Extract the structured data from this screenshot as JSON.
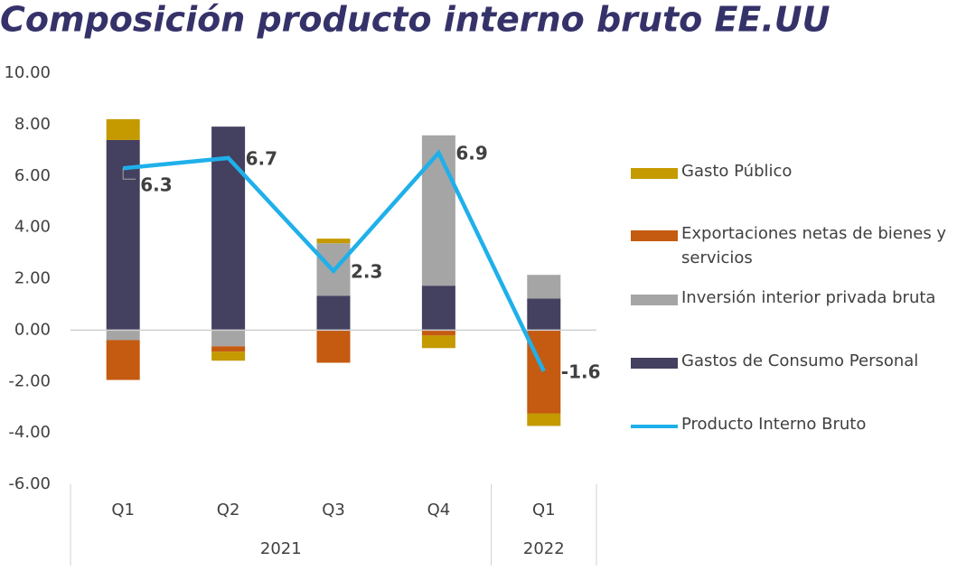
{
  "chart_data": {
    "type": "stacked-bar-line",
    "title": "Composición producto interno bruto EE.UU",
    "categories": [
      "Q1",
      "Q2",
      "Q3",
      "Q4",
      "Q1"
    ],
    "year_groups": [
      {
        "label": "2021",
        "count": 4
      },
      {
        "label": "2022",
        "count": 1
      }
    ],
    "series": [
      {
        "name": "Gastos de Consumo Personal",
        "color": "#44405f",
        "values": [
          7.4,
          7.92,
          1.34,
          1.73,
          1.23
        ]
      },
      {
        "name": "Inversión interior privada bruta",
        "color": "#a5a5a5",
        "values": [
          -0.39,
          -0.63,
          2.04,
          5.85,
          0.92
        ]
      },
      {
        "name": "Exportaciones netas de bienes y servicios",
        "color": "#c55a11",
        "values": [
          -1.55,
          -0.21,
          -1.27,
          -0.21,
          -3.24
        ]
      },
      {
        "name": "Gasto Público",
        "color": "#c49a00",
        "values": [
          0.81,
          -0.35,
          0.18,
          -0.49,
          -0.49
        ]
      }
    ],
    "line": {
      "name": "Producto Interno Bruto",
      "color": "#1fb0ea",
      "values": [
        6.3,
        6.7,
        2.3,
        6.9,
        -1.6
      ]
    },
    "ylim": [
      -6,
      10
    ],
    "yticks": [
      {
        "value": -6,
        "label": "-6.00"
      },
      {
        "value": -4,
        "label": "-4.00"
      },
      {
        "value": -2,
        "label": "-2.00"
      },
      {
        "value": 0,
        "label": "0.00"
      },
      {
        "value": 2,
        "label": "2.00"
      },
      {
        "value": 4,
        "label": "4.00"
      },
      {
        "value": 6,
        "label": "6.00"
      },
      {
        "value": 8,
        "label": "8.00"
      },
      {
        "value": 10,
        "label": "10.00"
      }
    ]
  }
}
